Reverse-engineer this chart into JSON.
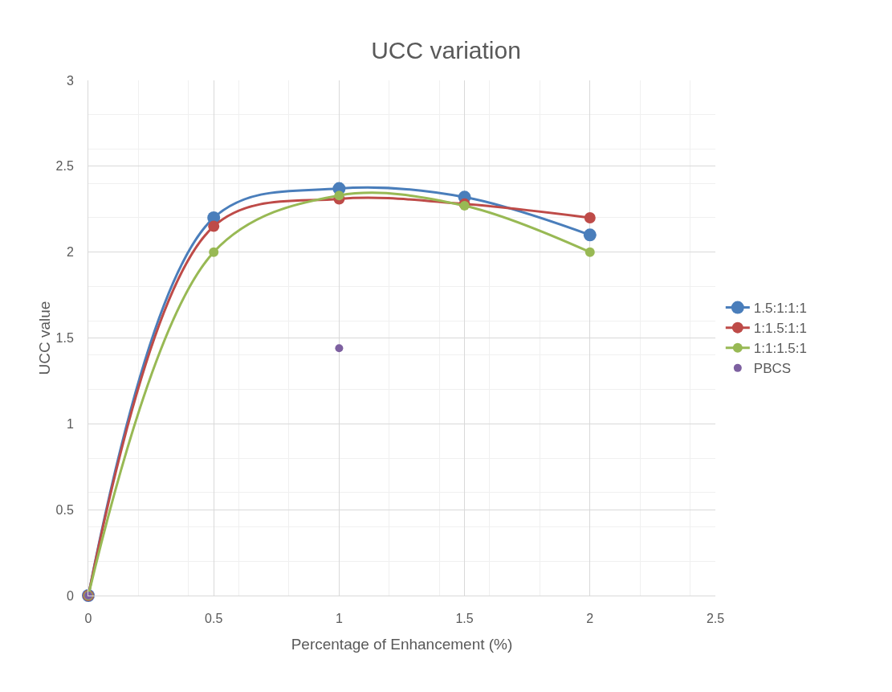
{
  "chart_data": {
    "type": "line",
    "title": "UCC variation",
    "xlabel": "Percentage of Enhancement (%)",
    "ylabel": "UCC value",
    "x": [
      0,
      0.5,
      1,
      1.5,
      2
    ],
    "series": [
      {
        "name": "1.5:1:1:1",
        "color": "#4a7ebb",
        "values": [
          0,
          2.2,
          2.37,
          2.32,
          2.1
        ]
      },
      {
        "name": "1:1.5:1:1",
        "color": "#be4b48",
        "values": [
          0,
          2.15,
          2.31,
          2.28,
          2.2
        ]
      },
      {
        "name": "1:1:1.5:1",
        "color": "#98b954",
        "values": [
          0,
          2.0,
          2.33,
          2.27,
          2.0
        ]
      },
      {
        "name": "PBCS",
        "type": "scatter",
        "color": "#7d60a0",
        "x": [
          0,
          1
        ],
        "values": [
          0,
          1.44
        ]
      }
    ],
    "xlim": [
      0,
      2.5
    ],
    "xticks": [
      0,
      0.5,
      1,
      1.5,
      2,
      2.5
    ],
    "ylim": [
      0,
      3
    ],
    "yticks": [
      0,
      0.5,
      1,
      1.5,
      2,
      2.5,
      3
    ],
    "grid": true,
    "legend": "right",
    "marker": "circle"
  }
}
